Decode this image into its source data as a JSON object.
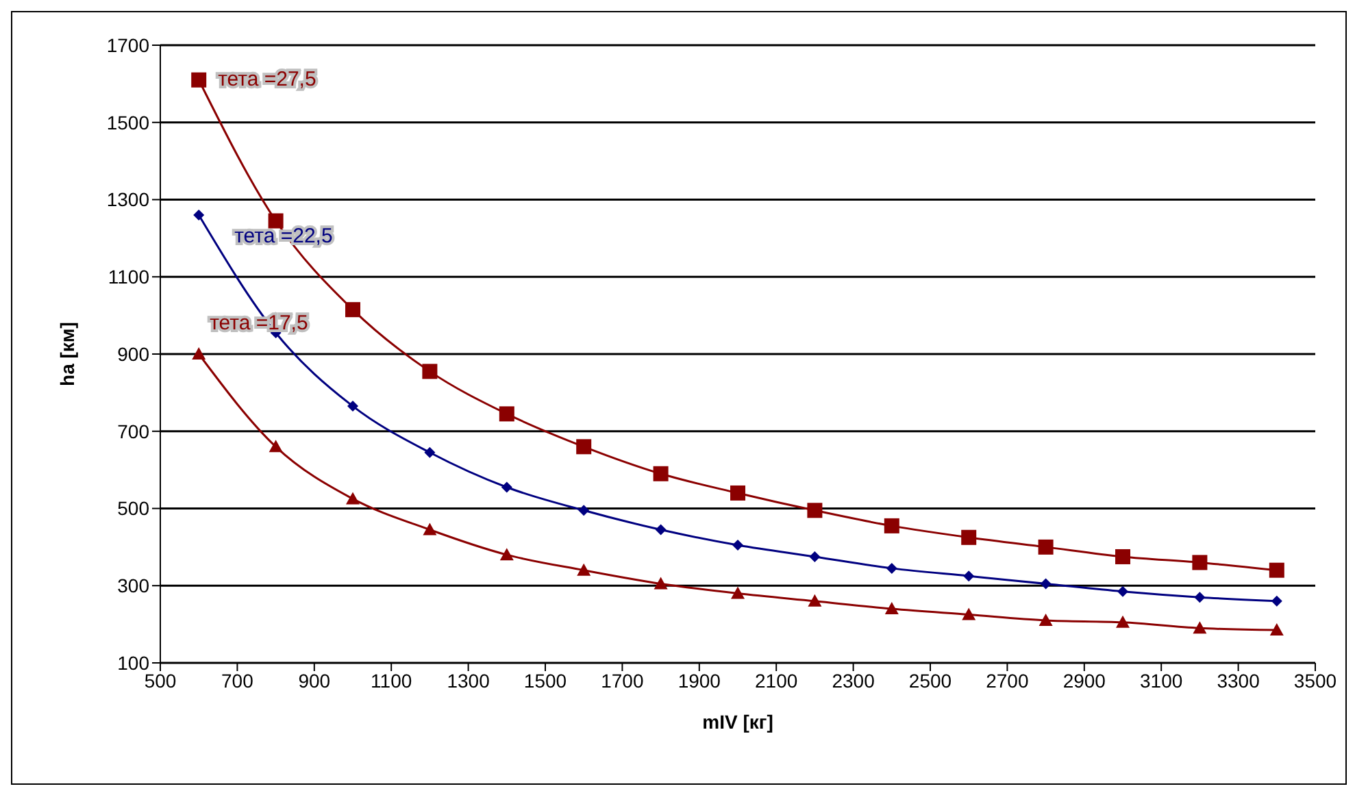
{
  "chart_data": {
    "type": "line",
    "xlabel": "mIV [кг]",
    "ylabel": "ha [км]",
    "x": [
      600,
      800,
      1000,
      1200,
      1400,
      1600,
      1800,
      2000,
      2200,
      2400,
      2600,
      2800,
      3000,
      3200,
      3400
    ],
    "series": [
      {
        "name": "тета =27,5",
        "color": "#8b0000",
        "marker": "square",
        "values": [
          1610,
          1245,
          1015,
          855,
          745,
          660,
          590,
          540,
          495,
          455,
          425,
          400,
          375,
          360,
          340
        ]
      },
      {
        "name": "тета =22,5",
        "color": "#000080",
        "marker": "diamond",
        "values": [
          1260,
          955,
          765,
          645,
          555,
          495,
          445,
          405,
          375,
          345,
          325,
          305,
          285,
          270,
          260
        ]
      },
      {
        "name": "тета =17,5",
        "color": "#8b0000",
        "marker": "triangle",
        "values": [
          900,
          660,
          525,
          445,
          380,
          340,
          305,
          280,
          260,
          240,
          225,
          210,
          205,
          190,
          185
        ]
      }
    ],
    "xlim": [
      500,
      3500
    ],
    "xticks": [
      500,
      700,
      900,
      1100,
      1300,
      1500,
      1700,
      1900,
      2100,
      2300,
      2500,
      2700,
      2900,
      3100,
      3300,
      3500
    ],
    "ylim": [
      100,
      1700
    ],
    "yticks": [
      100,
      300,
      500,
      700,
      900,
      1100,
      1300,
      1500,
      1700
    ],
    "grid": "y"
  }
}
